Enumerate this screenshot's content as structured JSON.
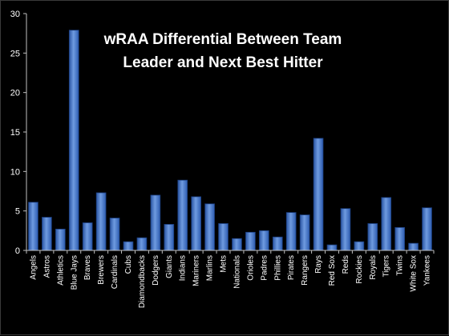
{
  "chart_data": {
    "type": "bar",
    "title": "wRAA Differential Between Team Leader and Next Best Hitter",
    "xlabel": "",
    "ylabel": "",
    "ylim": [
      0,
      30
    ],
    "yticks": [
      0,
      5,
      10,
      15,
      20,
      25,
      30
    ],
    "grid": false,
    "legend": "none",
    "bar_color": "#3a6fc4",
    "bar_highlight": "#7fa9ea",
    "categories": [
      "Angels",
      "Astros",
      "Athletics",
      "Blue Jays",
      "Braves",
      "Brewers",
      "Cardinals",
      "Cubs",
      "Diamondbacks",
      "Dodgers",
      "Giants",
      "Indians",
      "Mariners",
      "Marlins",
      "Mets",
      "Nationals",
      "Orioles",
      "Padres",
      "Phillies",
      "Pirates",
      "Rangers",
      "Rays",
      "Red Sox",
      "Reds",
      "Rockies",
      "Royals",
      "Tigers",
      "Twins",
      "White Sox",
      "Yankees"
    ],
    "values": [
      6.1,
      4.2,
      2.7,
      27.9,
      3.5,
      7.3,
      4.1,
      1.1,
      1.6,
      7.0,
      3.3,
      8.9,
      6.8,
      5.9,
      3.4,
      1.5,
      2.3,
      2.5,
      1.7,
      4.8,
      4.5,
      14.2,
      0.7,
      5.3,
      1.1,
      3.4,
      6.7,
      2.9,
      0.9,
      5.4
    ]
  }
}
